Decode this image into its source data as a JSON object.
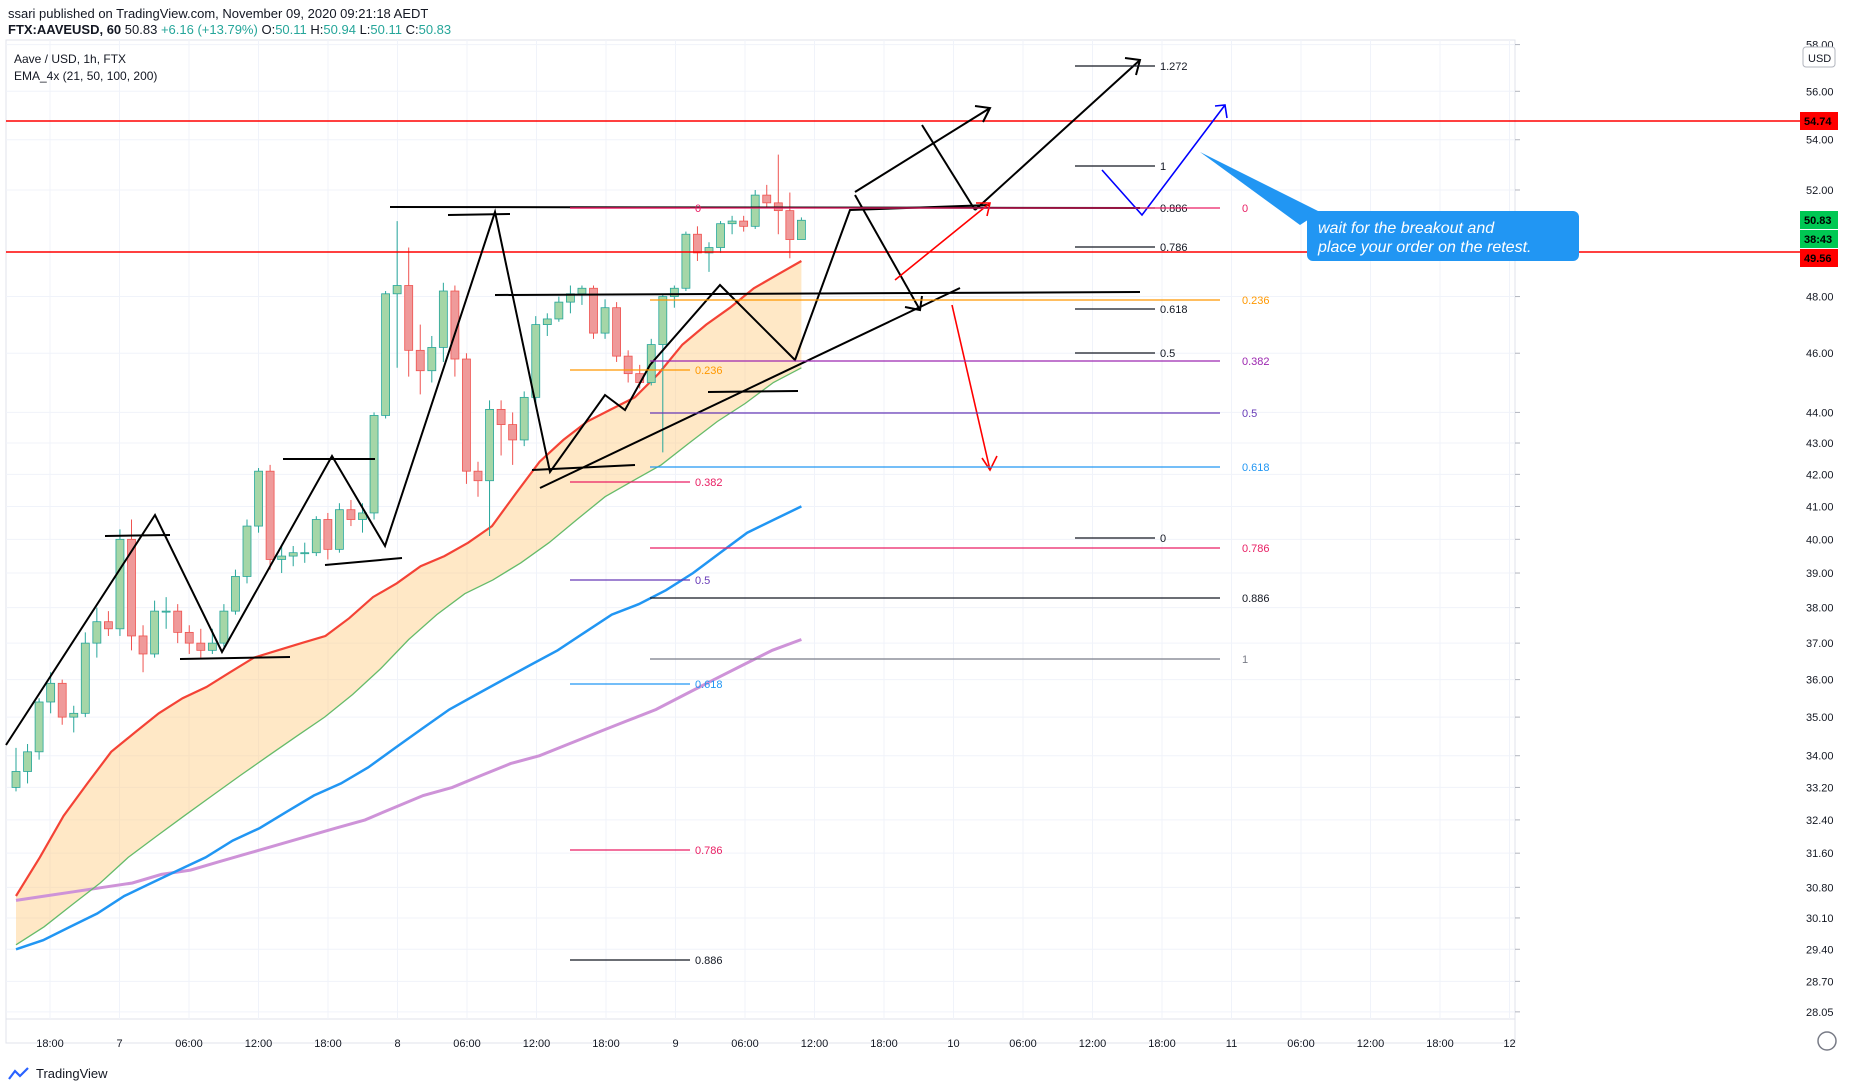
{
  "header": {
    "publisher": "ssari published on TradingView.com, November 09, 2020 09:21:18 AEDT",
    "symbol": "FTX:AAVEUSD, 60",
    "last": "50.83",
    "change": "+6.16 (+13.79%)",
    "open_label": "O:",
    "open": "50.11",
    "high_label": "H:",
    "high": "50.94",
    "low_label": "L:",
    "low": "50.11",
    "close_label": "C:",
    "close": "50.83"
  },
  "legend": {
    "pair": "Aave / USD, 1h, FTX",
    "indicator": "EMA_4x (21, 50, 100, 200)"
  },
  "price_axis": {
    "currency": "USD",
    "ticks": [
      "58.00",
      "56.00",
      "54.00",
      "52.00",
      "48.00",
      "46.00",
      "44.00",
      "43.00",
      "42.00",
      "41.00",
      "40.00",
      "39.00",
      "38.00",
      "37.00",
      "36.00",
      "35.00",
      "34.00",
      "33.20",
      "32.40",
      "31.60",
      "30.80",
      "30.10",
      "29.40",
      "28.70",
      "28.05"
    ],
    "badges": [
      {
        "text": "54.74",
        "color": "#ff0000"
      },
      {
        "text": "50.83",
        "color": "#00c853"
      },
      {
        "text": "38:43",
        "color": "#00c853"
      },
      {
        "text": "49.56",
        "color": "#ff0000"
      }
    ]
  },
  "time_axis": {
    "ticks": [
      "18:00",
      "7",
      "06:00",
      "12:00",
      "18:00",
      "8",
      "06:00",
      "12:00",
      "18:00",
      "9",
      "06:00",
      "12:00",
      "18:00",
      "10",
      "06:00",
      "12:00",
      "18:00",
      "11",
      "06:00",
      "12:00",
      "18:00",
      "12"
    ]
  },
  "annotation": {
    "line1": "wait for the breakout and",
    "line2": "place your order on the retest."
  },
  "fib_labels": [
    {
      "text": "1.272",
      "color": "#131722"
    },
    {
      "text": "1",
      "color": "#131722"
    },
    {
      "text": "0.886",
      "color": "#131722"
    },
    {
      "text": "0.786",
      "color": "#131722"
    },
    {
      "text": "0.618",
      "color": "#131722"
    },
    {
      "text": "0.5",
      "color": "#131722"
    },
    {
      "text": "0",
      "color": "#131722"
    },
    {
      "text": "0",
      "color": "#e91e63"
    },
    {
      "text": "0.236",
      "color": "#ff9800"
    },
    {
      "text": "0.382",
      "color": "#9c27b0"
    },
    {
      "text": "0.5",
      "color": "#673ab7"
    },
    {
      "text": "0.618",
      "color": "#2196f3"
    },
    {
      "text": "0.786",
      "color": "#e91e63"
    },
    {
      "text": "0.886",
      "color": "#131722"
    },
    {
      "text": "1",
      "color": "#787b86"
    },
    {
      "text": "0",
      "color": "#e91e63"
    },
    {
      "text": "0.236",
      "color": "#ff9800"
    },
    {
      "text": "0.382",
      "color": "#e91e63"
    },
    {
      "text": "0.5",
      "color": "#673ab7"
    },
    {
      "text": "0.618",
      "color": "#2196f3"
    },
    {
      "text": "0.786",
      "color": "#e91e63"
    },
    {
      "text": "0.886",
      "color": "#131722"
    }
  ],
  "footer": {
    "brand": "TradingView"
  },
  "chart_data": {
    "type": "candlestick",
    "title": "Aave / USD, 1h, FTX",
    "ylim": [
      27.9,
      58.2
    ],
    "y_scale": "log",
    "horizontal_levels": [
      {
        "value": 54.74,
        "color": "#ff0000"
      },
      {
        "value": 49.56,
        "color": "#ff0000"
      }
    ],
    "candles": [
      [
        33.2,
        34.2,
        33.1,
        33.6
      ],
      [
        33.6,
        34.3,
        33.3,
        34.1
      ],
      [
        34.1,
        35.5,
        33.9,
        35.4
      ],
      [
        35.4,
        36.2,
        35.1,
        35.9
      ],
      [
        35.9,
        36.0,
        34.8,
        35.0
      ],
      [
        35.0,
        35.3,
        34.6,
        35.1
      ],
      [
        35.1,
        37.3,
        35.0,
        37.0
      ],
      [
        37.0,
        38.0,
        36.6,
        37.6
      ],
      [
        37.6,
        37.9,
        37.2,
        37.4
      ],
      [
        37.4,
        40.3,
        37.2,
        40.0
      ],
      [
        40.0,
        40.6,
        36.8,
        37.2
      ],
      [
        37.2,
        37.5,
        36.2,
        36.7
      ],
      [
        36.7,
        38.2,
        36.6,
        37.9
      ],
      [
        37.9,
        38.3,
        37.4,
        37.9
      ],
      [
        37.9,
        38.1,
        37.0,
        37.3
      ],
      [
        37.3,
        37.5,
        36.7,
        37.0
      ],
      [
        37.0,
        37.4,
        36.6,
        36.8
      ],
      [
        36.8,
        37.4,
        36.7,
        37.0
      ],
      [
        37.0,
        38.1,
        36.9,
        37.9
      ],
      [
        37.9,
        39.1,
        37.8,
        38.9
      ],
      [
        38.9,
        40.6,
        38.7,
        40.4
      ],
      [
        40.4,
        42.2,
        40.2,
        42.1
      ],
      [
        42.1,
        42.3,
        39.1,
        39.4
      ],
      [
        39.4,
        39.8,
        39.0,
        39.5
      ],
      [
        39.5,
        39.8,
        39.2,
        39.6
      ],
      [
        39.6,
        39.9,
        39.3,
        39.6
      ],
      [
        39.6,
        40.7,
        39.5,
        40.6
      ],
      [
        40.6,
        40.8,
        39.4,
        39.7
      ],
      [
        39.7,
        41.1,
        39.6,
        40.9
      ],
      [
        40.9,
        41.2,
        40.4,
        40.6
      ],
      [
        40.6,
        41.1,
        40.2,
        40.8
      ],
      [
        40.8,
        44.0,
        40.6,
        43.9
      ],
      [
        43.9,
        48.2,
        43.8,
        48.1
      ],
      [
        48.1,
        50.8,
        45.5,
        48.4
      ],
      [
        48.4,
        49.8,
        45.2,
        46.1
      ],
      [
        46.1,
        47.0,
        44.6,
        45.4
      ],
      [
        45.4,
        46.6,
        45.0,
        46.2
      ],
      [
        46.2,
        48.5,
        45.7,
        48.2
      ],
      [
        48.2,
        48.4,
        45.2,
        45.8
      ],
      [
        45.8,
        46.0,
        41.7,
        42.1
      ],
      [
        42.1,
        42.4,
        41.3,
        41.8
      ],
      [
        41.8,
        44.4,
        40.1,
        44.1
      ],
      [
        44.1,
        44.4,
        42.6,
        43.6
      ],
      [
        43.6,
        44.0,
        42.3,
        43.1
      ],
      [
        43.1,
        44.7,
        42.9,
        44.5
      ],
      [
        44.5,
        47.3,
        44.3,
        47.0
      ],
      [
        47.0,
        47.4,
        46.6,
        47.2
      ],
      [
        47.2,
        48.0,
        47.1,
        47.8
      ],
      [
        47.8,
        48.4,
        47.4,
        48.1
      ],
      [
        48.1,
        48.4,
        47.7,
        48.3
      ],
      [
        48.3,
        48.4,
        46.5,
        46.7
      ],
      [
        46.7,
        47.9,
        46.5,
        47.6
      ],
      [
        47.6,
        47.8,
        45.7,
        45.9
      ],
      [
        45.9,
        46.1,
        45.0,
        45.3
      ],
      [
        45.3,
        45.6,
        44.8,
        45.0
      ],
      [
        45.0,
        46.5,
        44.9,
        46.3
      ],
      [
        46.3,
        48.1,
        42.7,
        48.0
      ],
      [
        48.0,
        48.4,
        47.6,
        48.3
      ],
      [
        48.3,
        50.4,
        48.2,
        50.3
      ],
      [
        50.3,
        50.6,
        49.3,
        49.6
      ],
      [
        49.6,
        50.0,
        48.9,
        49.8
      ],
      [
        49.8,
        50.8,
        49.6,
        50.7
      ],
      [
        50.7,
        51.0,
        50.3,
        50.8
      ],
      [
        50.8,
        51.0,
        50.4,
        50.6
      ],
      [
        50.6,
        52.0,
        50.5,
        51.8
      ],
      [
        51.8,
        52.2,
        51.3,
        51.5
      ],
      [
        51.5,
        53.4,
        50.3,
        51.2
      ],
      [
        51.2,
        51.9,
        49.4,
        50.1
      ],
      [
        50.1,
        50.94,
        50.11,
        50.83
      ]
    ],
    "ema": {
      "ema21": [
        30.6,
        31.5,
        32.5,
        33.3,
        34.1,
        34.6,
        35.1,
        35.5,
        35.8,
        36.2,
        36.6,
        36.8,
        37.0,
        37.2,
        37.7,
        38.3,
        38.7,
        39.2,
        39.5,
        39.9,
        40.4,
        41.4,
        42.4,
        43.1,
        43.7,
        44.1,
        44.5,
        45.3,
        46.3,
        47.0,
        47.6,
        48.3,
        48.8,
        49.3
      ],
      "ema50": [
        29.5,
        29.9,
        30.4,
        30.9,
        31.5,
        32.0,
        32.5,
        33.0,
        33.5,
        34.0,
        34.5,
        35.0,
        35.6,
        36.3,
        37.1,
        37.8,
        38.4,
        38.8,
        39.3,
        39.9,
        40.6,
        41.3,
        41.8,
        42.3,
        43.0,
        43.7,
        44.3,
        45.0,
        45.5
      ],
      "ema100": [
        29.4,
        29.6,
        29.9,
        30.2,
        30.6,
        30.9,
        31.2,
        31.5,
        31.9,
        32.2,
        32.6,
        33.0,
        33.3,
        33.7,
        34.2,
        34.7,
        35.2,
        35.6,
        36.0,
        36.4,
        36.8,
        37.3,
        37.8,
        38.1,
        38.5,
        39.0,
        39.6,
        40.2,
        40.6,
        41.0
      ],
      "ema200": [
        30.5,
        30.6,
        30.7,
        30.8,
        30.9,
        31.1,
        31.2,
        31.4,
        31.6,
        31.8,
        32.0,
        32.2,
        32.4,
        32.7,
        33.0,
        33.2,
        33.5,
        33.8,
        34.0,
        34.3,
        34.6,
        34.9,
        35.2,
        35.6,
        36.0,
        36.4,
        36.8,
        37.1
      ]
    },
    "colors": {
      "up": "#a5d6a7",
      "up_border": "#26a69a",
      "down": "#ef9a9a",
      "down_border": "#ef5350",
      "ema21": "#f44336",
      "ema50": "#66bb6a",
      "ema100": "#2196f3",
      "ema200": "#ce93d8",
      "ribbon": "#ffcc80"
    }
  }
}
